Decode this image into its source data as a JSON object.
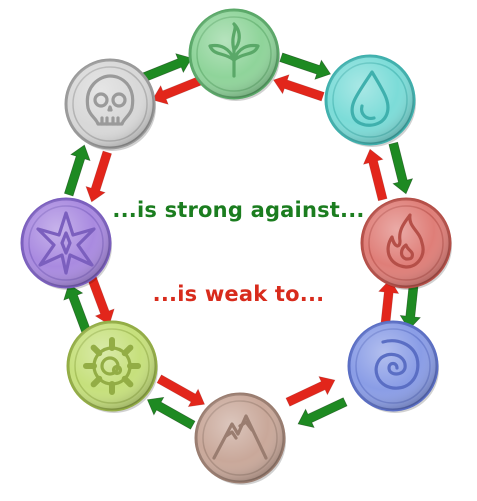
{
  "legend": {
    "strong_label": "...is strong against...",
    "weak_label": "...is weak to..."
  },
  "colors": {
    "strong": "#1e8a22",
    "weak": "#e2261b",
    "text_strong": "#1b7d1f",
    "text_weak": "#d82b1c"
  },
  "elements": [
    {
      "id": "nature",
      "icon": "leaf-sprout-icon",
      "fill": "#8fd49a",
      "stroke": "#5aa868"
    },
    {
      "id": "water",
      "icon": "water-drop-icon",
      "fill": "#7cdcd8",
      "stroke": "#3fb0ad"
    },
    {
      "id": "fire",
      "icon": "flame-icon",
      "fill": "#df7e78",
      "stroke": "#b54f48"
    },
    {
      "id": "wind",
      "icon": "swirl-icon",
      "fill": "#8a9de6",
      "stroke": "#5a6ec4"
    },
    {
      "id": "earth",
      "icon": "mountain-icon",
      "fill": "#c9a89a",
      "stroke": "#9a7d70"
    },
    {
      "id": "tech",
      "icon": "gear-icon",
      "fill": "#c6e07c",
      "stroke": "#93ad45"
    },
    {
      "id": "magic",
      "icon": "star-burst-icon",
      "fill": "#a98ae0",
      "stroke": "#7b5fbe"
    },
    {
      "id": "death",
      "icon": "skull-icon",
      "fill": "#d8d8d8",
      "stroke": "#9a9a9a"
    }
  ]
}
